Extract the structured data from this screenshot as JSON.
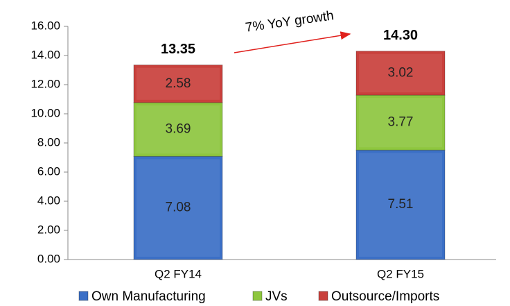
{
  "chart_data": {
    "type": "stacked_bar",
    "categories": [
      "Q2 FY14",
      "Q2 FY15"
    ],
    "series": [
      {
        "name": "Own Manufacturing",
        "color": "#3b6fc6",
        "values": [
          7.08,
          7.51
        ]
      },
      {
        "name": "JVs",
        "color": "#8ec63f",
        "values": [
          3.69,
          3.77
        ]
      },
      {
        "name": "Outsource/Imports",
        "color": "#c9403c",
        "values": [
          2.58,
          3.02
        ]
      }
    ],
    "totals": [
      13.35,
      14.3
    ],
    "total_labels": [
      "13.35",
      "14.30"
    ],
    "annotation": "7% YoY growth",
    "ylim": [
      0,
      16
    ],
    "yticks": [
      {
        "value": 0,
        "label": "0.00"
      },
      {
        "value": 2,
        "label": "2.00"
      },
      {
        "value": 4,
        "label": "4.00"
      },
      {
        "value": 6,
        "label": "6.00"
      },
      {
        "value": 8,
        "label": "8.00"
      },
      {
        "value": 10,
        "label": "10.00"
      },
      {
        "value": 12,
        "label": "12.00"
      },
      {
        "value": 14,
        "label": "14.00"
      },
      {
        "value": 16,
        "label": "16.00"
      }
    ],
    "legend": "bottom"
  }
}
